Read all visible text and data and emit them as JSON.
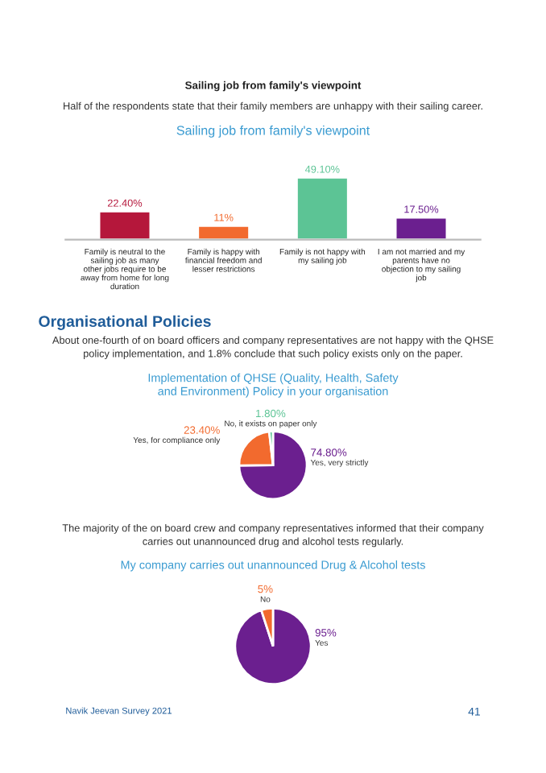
{
  "chart_data": [
    {
      "type": "bar",
      "title": "Sailing job from family's viewpoint",
      "annotations": [
        "Sailing job from family's viewpoint",
        "Half of the respondents state that their family members are unhappy with their sailing career."
      ],
      "categories": [
        "Family is neutral to the sailing job as many other jobs require to be away from home for long duration",
        "Family is happy with financial freedom and lesser restrictions",
        "Family is not happy with my sailing job",
        "I am not married and my parents have no objection to my sailing job"
      ],
      "values": [
        22.4,
        11,
        49.1,
        17.5
      ],
      "value_labels": [
        "22.40%",
        "11%",
        "49.10%",
        "17.50%"
      ],
      "colors": [
        "#b5173b",
        "#f26a2e",
        "#5cc495",
        "#6b1f8f"
      ]
    },
    {
      "type": "pie",
      "title": "Implementation of QHSE (Quality, Health, Safety and Environment) Policy in your organisation",
      "annotations": [
        "Organisational Policies",
        "About one-fourth of on board officers and company representatives are not happy with the QHSE policy implementation, and 1.8% conclude that such policy exists only on the paper."
      ],
      "categories": [
        "Yes, very strictly",
        "Yes, for compliance only",
        "No, it exists on paper only"
      ],
      "values": [
        74.8,
        23.4,
        1.8
      ],
      "value_labels": [
        "74.80%",
        "23.40%",
        "1.80%"
      ],
      "colors": [
        "#6b1f8f",
        "#f26a2e",
        "#5cc495"
      ]
    },
    {
      "type": "pie",
      "title": "My company carries out unannounced Drug & Alcohol tests",
      "annotations": [
        "The majority of the on board crew and company representatives informed that their company carries out unannounced drug and alcohol tests regularly.",
        "Navik Jeevan Survey 2021",
        "41"
      ],
      "categories": [
        "Yes",
        "No"
      ],
      "values": [
        95,
        5
      ],
      "value_labels": [
        "95%",
        "5%"
      ],
      "colors": [
        "#6b1f8f",
        "#f26a2e"
      ]
    }
  ]
}
